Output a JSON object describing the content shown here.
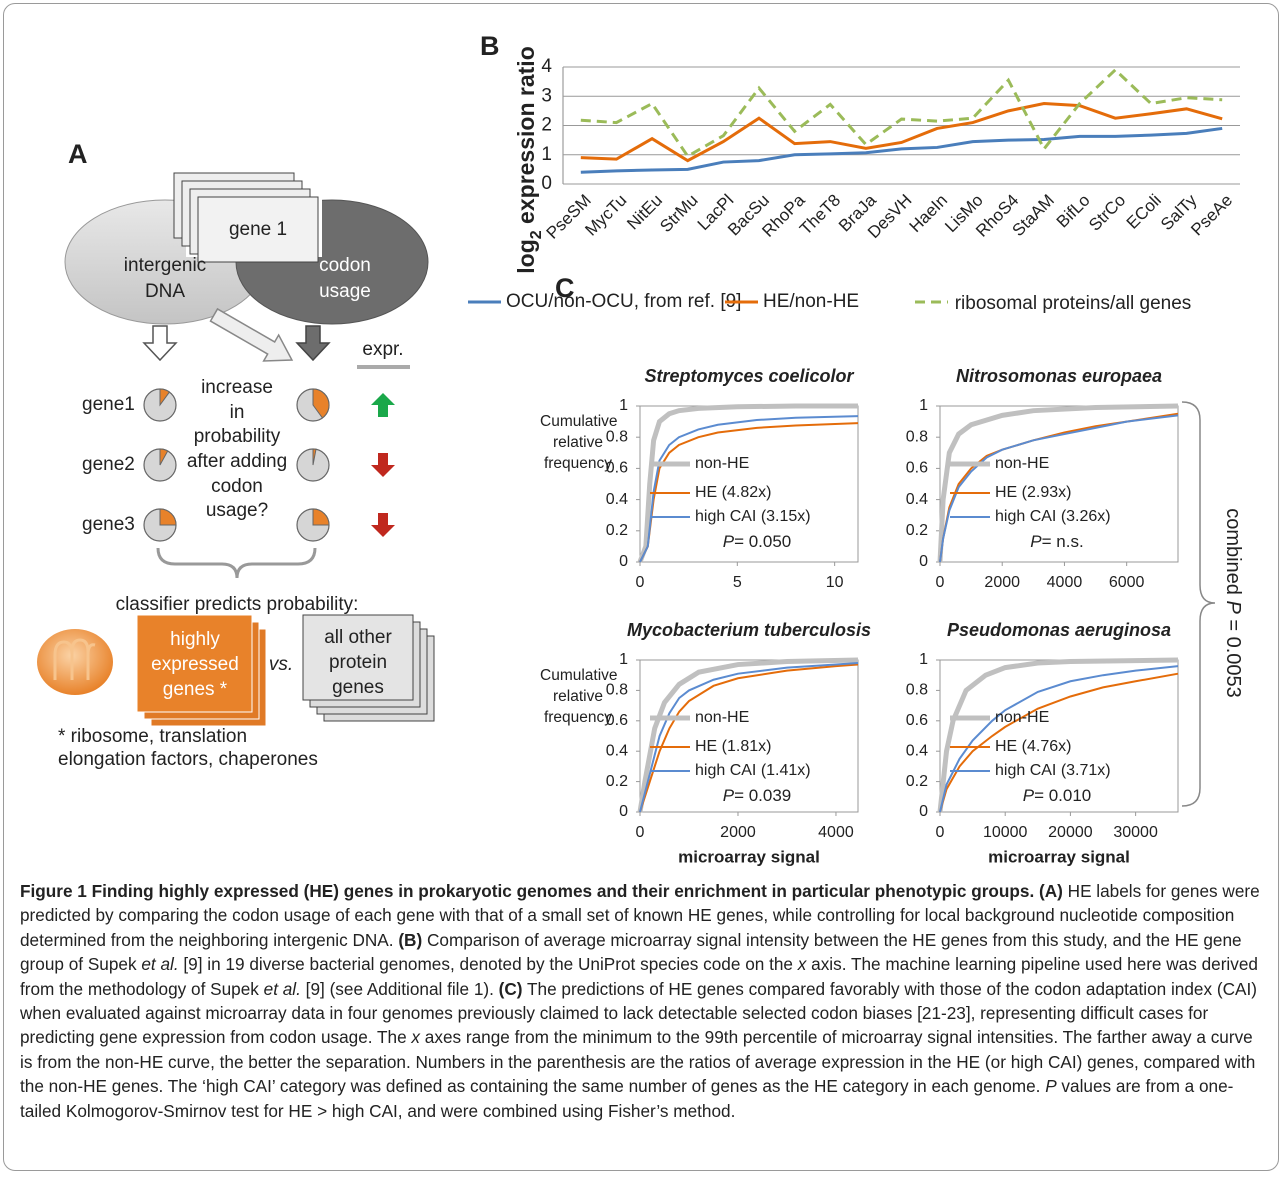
{
  "panel_a": {
    "label": "A",
    "card": "gene 1",
    "left_shape": [
      "intergenic",
      "DNA"
    ],
    "right_shape": [
      "codon",
      "usage"
    ],
    "expr_header": "expr.",
    "genes": [
      {
        "label": "gene1",
        "before": 10,
        "after": 40
      },
      {
        "label": "gene2",
        "before": 8,
        "after": 3
      },
      {
        "label": "gene3",
        "before": 25,
        "after": 25
      }
    ],
    "question": [
      "increase",
      "in",
      "probability",
      "after adding",
      "codon",
      "usage?"
    ],
    "classifier": "classifier predicts probability:",
    "he_card": [
      "highly",
      "expressed",
      "genes *"
    ],
    "vs": "vs.",
    "other_card": [
      "all other",
      "protein",
      "genes"
    ],
    "footnote": [
      "* ribosome, translation",
      "elongation factors, chaperones"
    ]
  },
  "chart_data": [
    {
      "type": "line",
      "panel_label": "B",
      "y_label": {
        "base": "log",
        "subscript": "2",
        "rest": " expression ratio"
      },
      "categories": [
        "PseSM",
        "MycTu",
        "NitEu",
        "StrMu",
        "LacPl",
        "BacSu",
        "RhoPa",
        "TheT8",
        "BraJa",
        "DesVH",
        "HaeIn",
        "LisMo",
        "RhoS4",
        "StaAM",
        "BifLo",
        "StrCo",
        "EColi",
        "SalTy",
        "PseAe"
      ],
      "series": [
        {
          "name": "OCU/non-OCU, from ref. [9]",
          "color": "#4a7ebb",
          "values": [
            0.4,
            0.45,
            0.48,
            0.5,
            0.75,
            0.8,
            1.0,
            1.03,
            1.07,
            1.2,
            1.25,
            1.45,
            1.5,
            1.52,
            1.63,
            1.63,
            1.67,
            1.73,
            1.9
          ]
        },
        {
          "name": "HE/non-HE",
          "color": "#e46c0a",
          "values": [
            0.9,
            0.85,
            1.55,
            0.8,
            1.45,
            2.25,
            1.38,
            1.45,
            1.22,
            1.42,
            1.9,
            2.1,
            2.5,
            2.75,
            2.68,
            2.25,
            2.4,
            2.57,
            2.23
          ]
        },
        {
          "name": "ribosomal proteins/all genes",
          "color": "#9bbb59",
          "line_style": "dashed",
          "values": [
            2.18,
            2.1,
            2.75,
            0.95,
            1.65,
            3.28,
            1.8,
            2.72,
            1.35,
            2.22,
            2.15,
            2.25,
            3.55,
            1.2,
            2.75,
            3.9,
            2.75,
            2.95,
            2.88
          ]
        }
      ],
      "ylim": [
        0,
        4
      ],
      "yticks": [
        0,
        1,
        2,
        3,
        4
      ],
      "grid": true
    },
    {
      "type": "line",
      "title": "Streptomyces coelicolor",
      "y_label": "Cumulative relative frequency",
      "xlim": [
        0,
        11.2
      ],
      "xticks": [
        0,
        5,
        10
      ],
      "ylim": [
        0,
        1
      ],
      "yticks": [
        0,
        0.2,
        0.4,
        0.6,
        0.8,
        1
      ],
      "series": [
        {
          "name": "non-HE",
          "color": "#c0c0c0",
          "x": [
            0,
            0.3,
            0.5,
            0.7,
            1,
            1.5,
            2,
            3,
            5,
            8,
            11.2
          ],
          "values": [
            0,
            0.1,
            0.5,
            0.78,
            0.9,
            0.95,
            0.97,
            0.985,
            0.995,
            1,
            1
          ]
        },
        {
          "name": "HE (4.82x)",
          "color": "#e46c0a",
          "x": [
            0,
            0.4,
            0.7,
            1,
            1.5,
            2,
            3,
            4,
            6,
            8,
            11.2
          ],
          "values": [
            0,
            0.1,
            0.4,
            0.6,
            0.7,
            0.75,
            0.8,
            0.83,
            0.86,
            0.875,
            0.89
          ]
        },
        {
          "name": "high CAI (3.15x)",
          "color": "#5b8bd0",
          "x": [
            0,
            0.4,
            0.7,
            1,
            1.5,
            2,
            3,
            4,
            6,
            8,
            11.2
          ],
          "values": [
            0,
            0.1,
            0.45,
            0.65,
            0.75,
            0.8,
            0.85,
            0.88,
            0.91,
            0.925,
            0.935
          ]
        }
      ],
      "annotation": [
        "P",
        "= 0.050"
      ]
    },
    {
      "type": "line",
      "title": "Nitrosomonas europaea",
      "xlim": [
        0,
        7650
      ],
      "xticks": [
        0,
        2000,
        4000,
        6000
      ],
      "ylim": [
        0,
        1
      ],
      "yticks": [
        0,
        0.2,
        0.4,
        0.6,
        0.8,
        1
      ],
      "series": [
        {
          "name": "non-HE",
          "color": "#c0c0c0",
          "x": [
            0,
            100,
            300,
            600,
            1000,
            2000,
            3000,
            5000,
            7650
          ],
          "values": [
            0,
            0.4,
            0.7,
            0.82,
            0.88,
            0.94,
            0.97,
            0.99,
            1
          ]
        },
        {
          "name": "HE (2.93x)",
          "color": "#e46c0a",
          "x": [
            0,
            100,
            300,
            600,
            1000,
            1500,
            2000,
            3000,
            4000,
            5000,
            6000,
            7650
          ],
          "values": [
            0,
            0.15,
            0.35,
            0.5,
            0.6,
            0.68,
            0.72,
            0.78,
            0.83,
            0.87,
            0.9,
            0.95
          ]
        },
        {
          "name": "high CAI (3.26x)",
          "color": "#5b8bd0",
          "x": [
            0,
            100,
            300,
            600,
            1000,
            1500,
            2000,
            3000,
            4000,
            5000,
            6000,
            7650
          ],
          "values": [
            0,
            0.15,
            0.33,
            0.48,
            0.58,
            0.67,
            0.72,
            0.78,
            0.82,
            0.86,
            0.9,
            0.94
          ]
        }
      ],
      "annotation": [
        "P",
        "= n.s."
      ]
    },
    {
      "type": "line",
      "title": "Mycobacterium tuberculosis",
      "y_label": "Cumulative relative frequency",
      "x_label": "microarray signal",
      "xlim": [
        0,
        4450
      ],
      "xticks": [
        0,
        2000,
        4000
      ],
      "ylim": [
        0,
        1
      ],
      "yticks": [
        0,
        0.2,
        0.4,
        0.6,
        0.8,
        1
      ],
      "series": [
        {
          "name": "non-HE",
          "color": "#c0c0c0",
          "x": [
            0,
            100,
            300,
            500,
            800,
            1200,
            2000,
            3000,
            4450
          ],
          "values": [
            0,
            0.2,
            0.55,
            0.72,
            0.84,
            0.92,
            0.97,
            0.99,
            1
          ]
        },
        {
          "name": "HE (1.81x)",
          "color": "#e46c0a",
          "x": [
            0,
            200,
            400,
            600,
            800,
            1000,
            1500,
            2000,
            3000,
            4000,
            4450
          ],
          "values": [
            0,
            0.2,
            0.4,
            0.55,
            0.66,
            0.73,
            0.83,
            0.88,
            0.93,
            0.96,
            0.97
          ]
        },
        {
          "name": "high CAI (1.41x)",
          "color": "#5b8bd0",
          "x": [
            0,
            200,
            400,
            600,
            800,
            1000,
            1500,
            2000,
            3000,
            4000,
            4450
          ],
          "values": [
            0,
            0.25,
            0.5,
            0.65,
            0.75,
            0.8,
            0.87,
            0.91,
            0.95,
            0.97,
            0.98
          ]
        }
      ],
      "annotation": [
        "P",
        "= 0.039"
      ]
    },
    {
      "type": "line",
      "title": "Pseudomonas aeruginosa",
      "x_label": "microarray signal",
      "xlim": [
        0,
        36500
      ],
      "xticks": [
        0,
        10000,
        20000,
        30000
      ],
      "ylim": [
        0,
        1
      ],
      "yticks": [
        0,
        0.2,
        0.4,
        0.6,
        0.8,
        1
      ],
      "series": [
        {
          "name": "non-HE",
          "color": "#c0c0c0",
          "x": [
            0,
            1000,
            2000,
            4000,
            7000,
            10000,
            15000,
            20000,
            36500
          ],
          "values": [
            0,
            0.4,
            0.6,
            0.8,
            0.9,
            0.95,
            0.98,
            0.99,
            1
          ]
        },
        {
          "name": "HE (4.76x)",
          "color": "#e46c0a",
          "x": [
            0,
            1000,
            3000,
            5000,
            8000,
            10000,
            15000,
            20000,
            25000,
            30000,
            36500
          ],
          "values": [
            0,
            0.15,
            0.3,
            0.4,
            0.5,
            0.56,
            0.68,
            0.76,
            0.82,
            0.86,
            0.91
          ]
        },
        {
          "name": "high CAI (3.71x)",
          "color": "#5b8bd0",
          "x": [
            0,
            1000,
            3000,
            5000,
            8000,
            10000,
            15000,
            20000,
            25000,
            30000,
            36500
          ],
          "values": [
            0,
            0.18,
            0.35,
            0.47,
            0.6,
            0.67,
            0.79,
            0.86,
            0.9,
            0.93,
            0.96
          ]
        }
      ],
      "annotation": [
        "P",
        "= 0.010"
      ]
    }
  ],
  "panel_c": {
    "label": "C",
    "combined": [
      "combined ",
      "P",
      " = 0.0053"
    ]
  },
  "caption": {
    "runs": [
      {
        "text": "Figure 1 Finding highly expressed (HE) genes in prokaryotic genomes and their enrichment in particular phenotypic groups. (A)",
        "style": "bold"
      },
      {
        "text": " HE labels for genes were predicted by comparing the codon usage of each gene with that of a small set of known HE genes, while controlling for local background nucleotide composition determined from the neighboring intergenic DNA. "
      },
      {
        "text": "(B)",
        "style": "bold"
      },
      {
        "text": " Comparison of average microarray signal intensity between the HE genes from this study, and the HE gene group of Supek "
      },
      {
        "text": "et al.",
        "style": "italic"
      },
      {
        "text": " [9] in 19 diverse bacterial genomes, denoted by the UniProt species code on the "
      },
      {
        "text": "x",
        "style": "italic"
      },
      {
        "text": " axis. The machine learning pipeline used here was derived from the methodology of Supek "
      },
      {
        "text": "et al.",
        "style": "italic"
      },
      {
        "text": " [9] (see Additional file 1). "
      },
      {
        "text": "(C)",
        "style": "bold"
      },
      {
        "text": " The predictions of HE genes compared favorably with those of the codon adaptation index (CAI) when evaluated against microarray data in four genomes previously claimed to lack detectable selected codon biases [21-23], representing difficult cases for predicting gene expression from codon usage. The "
      },
      {
        "text": "x",
        "style": "italic"
      },
      {
        "text": " axes range from the minimum to the 99th percentile of microarray signal intensities. The farther away a curve is from the non-HE curve, the better the separation. Numbers in the parenthesis are the ratios of average expression in the HE (or high CAI) genes, compared with the non-HE genes. The ‘high CAI’ category was defined as containing the same number of genes as the HE category in each genome. "
      },
      {
        "text": "P",
        "style": "italic"
      },
      {
        "text": " values are from a one-tailed Kolmogorov-Smirnov test for HE > high CAI, and were combined using Fisher’s method."
      }
    ]
  }
}
